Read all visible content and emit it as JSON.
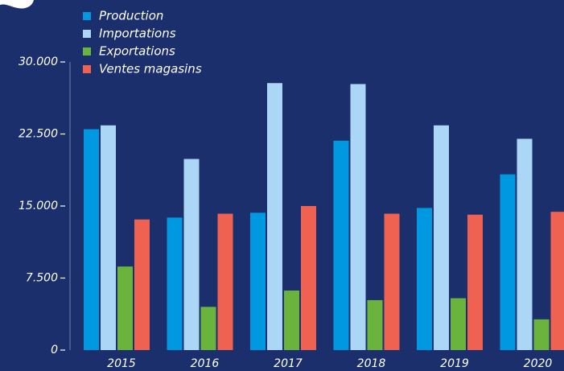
{
  "chart_data": {
    "type": "bar",
    "categories": [
      "2015",
      "2016",
      "2017",
      "2018",
      "2019",
      "2020"
    ],
    "series": [
      {
        "name": "Production",
        "color": "#0098e0",
        "values": [
          23000,
          13800,
          14300,
          21800,
          14800,
          18300
        ]
      },
      {
        "name": "Importations",
        "color": "#acd6f5",
        "values": [
          23400,
          19900,
          27800,
          27700,
          23400,
          22000
        ]
      },
      {
        "name": "Exportations",
        "color": "#6ab43e",
        "values": [
          8700,
          4500,
          6200,
          5200,
          5400,
          3200
        ]
      },
      {
        "name": "Ventes magasins",
        "color": "#ef6150",
        "values": [
          13600,
          14200,
          15000,
          14200,
          14100,
          14400
        ]
      }
    ],
    "ylim": [
      0,
      30000
    ],
    "yticks": [
      {
        "value": 0,
        "label": "0"
      },
      {
        "value": 7500,
        "label": "7.500"
      },
      {
        "value": 15000,
        "label": "15.000"
      },
      {
        "value": 22500,
        "label": "22.500"
      },
      {
        "value": 30000,
        "label": "30.000"
      }
    ],
    "legend": "top-left"
  }
}
